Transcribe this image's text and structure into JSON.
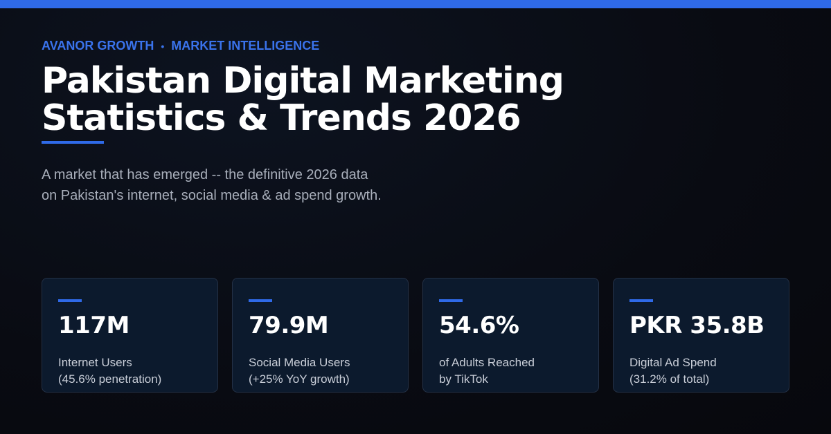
{
  "header": {
    "brand": "AVANOR GROWTH",
    "separator": "•",
    "section": "MARKET INTELLIGENCE",
    "title_line1": "Pakistan Digital Marketing",
    "title_line2": "Statistics & Trends 2026",
    "subtitle_line1": "A market that has emerged -- the definitive 2026 data",
    "subtitle_line2": "on Pakistan's internet, social media & ad spend growth."
  },
  "stats": [
    {
      "value": "117M",
      "label_line1": "Internet Users",
      "label_line2": "(45.6% penetration)"
    },
    {
      "value": "79.9M",
      "label_line1": "Social Media Users",
      "label_line2": "(+25% YoY growth)"
    },
    {
      "value": "54.6%",
      "label_line1": "of Adults Reached",
      "label_line2": "by TikTok"
    },
    {
      "value": "PKR 35.8B",
      "label_line1": "Digital Ad Spend",
      "label_line2": "(31.2% of total)"
    }
  ],
  "colors": {
    "accent": "#2f6ae8",
    "background": "#090b12",
    "card": "#0c1a2d"
  }
}
